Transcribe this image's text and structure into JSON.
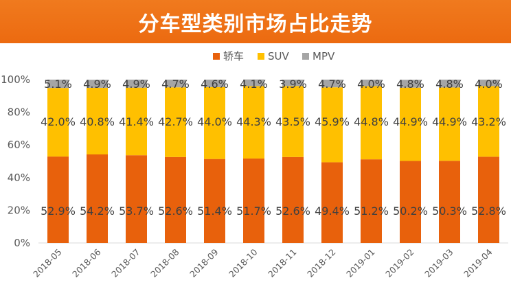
{
  "chart_data": {
    "type": "bar",
    "stacked": true,
    "title": "分车型类别市场占比走势",
    "categories": [
      "2018-05",
      "2018-06",
      "2018-07",
      "2018-08",
      "2018-09",
      "2018-10",
      "2018-11",
      "2018-12",
      "2019-01",
      "2019-02",
      "2019-03",
      "2019-04"
    ],
    "series": [
      {
        "name": "轿车",
        "color": "#e8610c",
        "values": [
          52.9,
          54.2,
          53.7,
          52.6,
          51.4,
          51.7,
          52.6,
          49.4,
          51.2,
          50.2,
          50.3,
          52.8
        ]
      },
      {
        "name": "SUV",
        "color": "#ffc000",
        "values": [
          42.0,
          40.8,
          41.4,
          42.7,
          44.0,
          44.3,
          43.5,
          45.9,
          44.8,
          44.9,
          44.9,
          43.2
        ]
      },
      {
        "name": "MPV",
        "color": "#a5a5a5",
        "values": [
          5.1,
          4.9,
          4.9,
          4.7,
          4.6,
          4.1,
          3.9,
          4.7,
          4.0,
          4.8,
          4.8,
          4.0
        ]
      }
    ],
    "ylim": [
      0,
      100
    ],
    "y_ticks": [
      "0%",
      "20%",
      "40%",
      "60%",
      "80%",
      "100%"
    ],
    "legend_position": "top-center",
    "grid": false
  }
}
